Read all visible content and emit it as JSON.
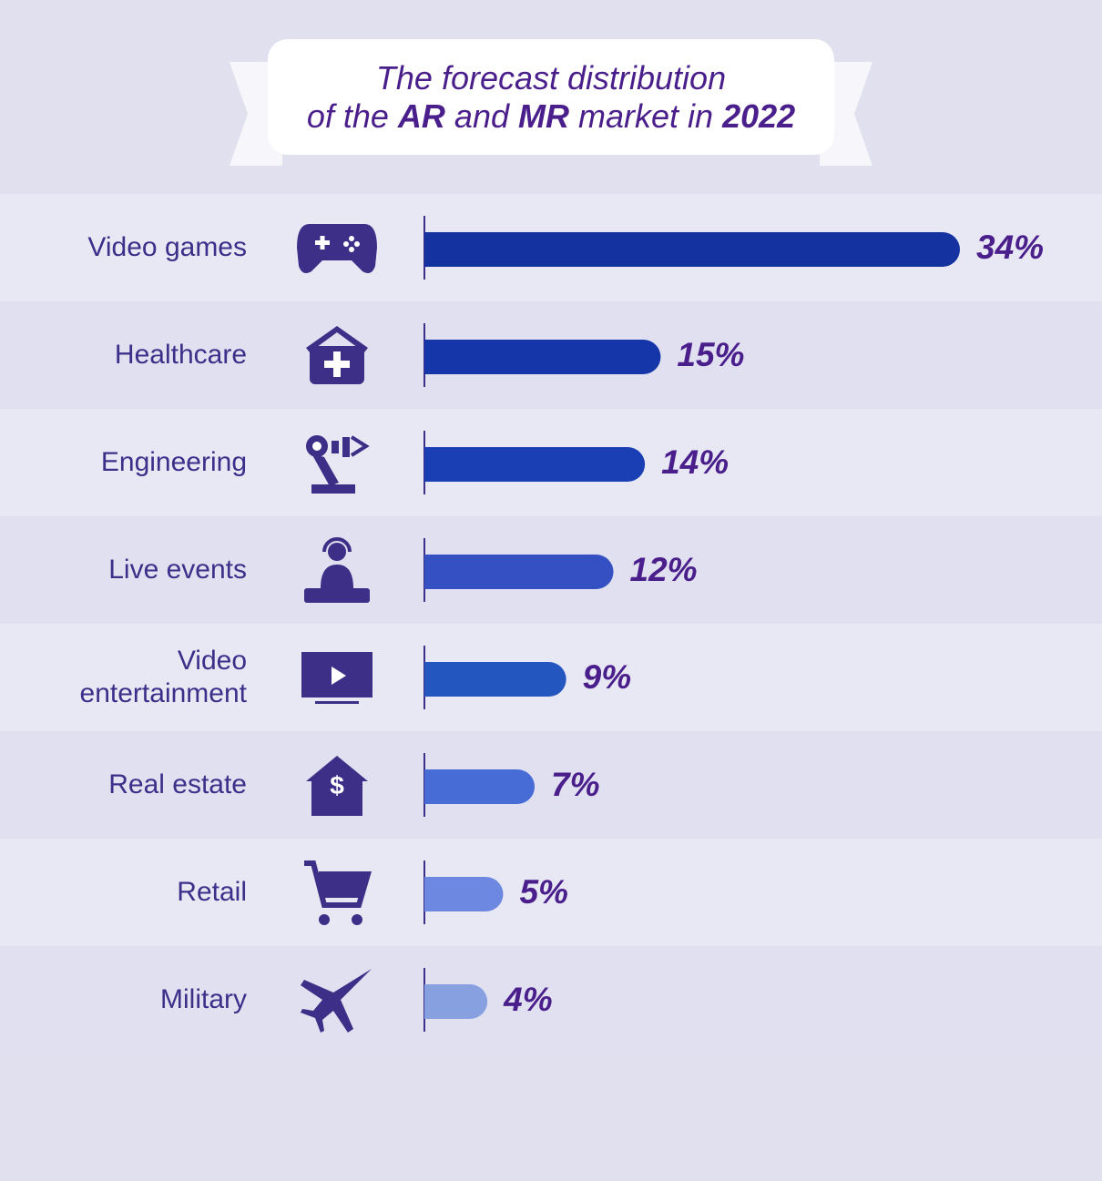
{
  "chart_data": {
    "type": "bar",
    "title": [
      "The forecast distribution",
      "of the",
      "AR",
      "and",
      "MR",
      "market in",
      "2022"
    ],
    "categories": [
      "Video games",
      "Healthcare",
      "Engineering",
      "Live events",
      "Video entertainment",
      "Real estate",
      "Retail",
      "Military"
    ],
    "values": [
      34,
      15,
      14,
      12,
      9,
      7,
      5,
      4
    ],
    "value_labels": [
      "34%",
      "15%",
      "14%",
      "12%",
      "9%",
      "7%",
      "5%",
      "4%"
    ],
    "colors": [
      "#1533a0",
      "#1436a8",
      "#1a3fb5",
      "#3550c2",
      "#2456c0",
      "#486cd6",
      "#6d88e0",
      "#87a0df"
    ]
  }
}
